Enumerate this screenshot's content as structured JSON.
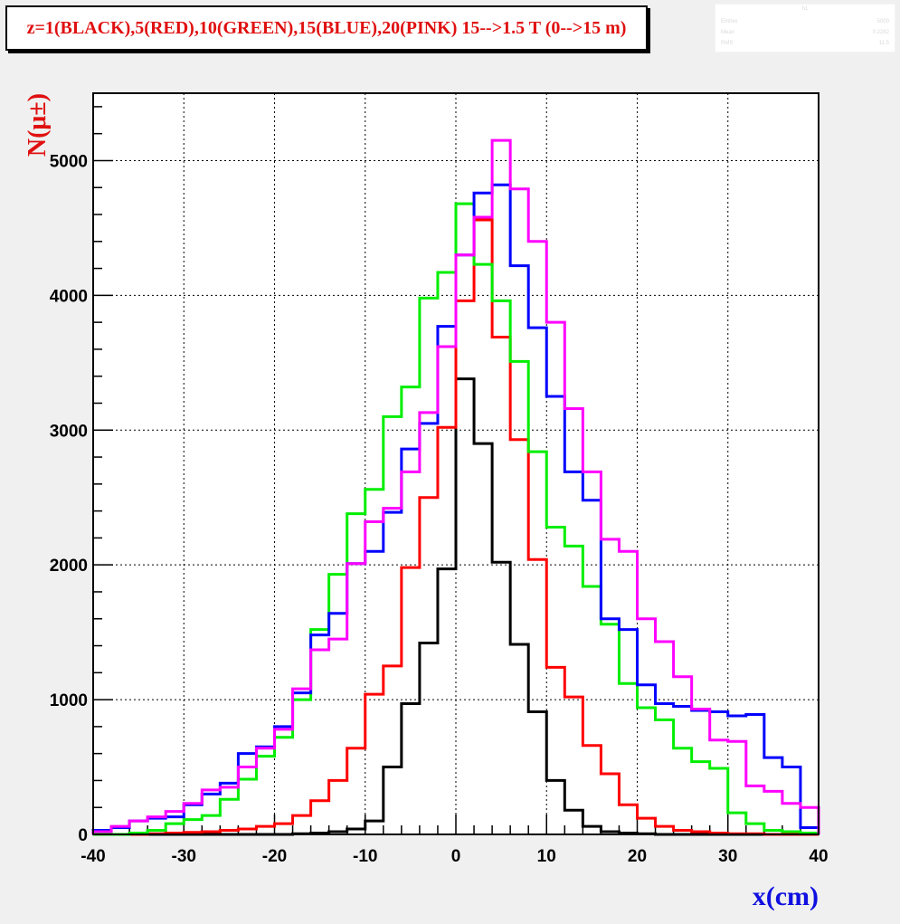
{
  "title": "z=1(BLACK),5(RED),10(GREEN),15(BLUE),20(PINK) 15-->1.5 T (0-->15 m)",
  "stats_box": {
    "title": "h1",
    "rows": [
      {
        "label": "Entries",
        "value": "5000"
      },
      {
        "label": "Mean",
        "value": "0.2282"
      },
      {
        "label": "RMS",
        "value": "11.5"
      }
    ]
  },
  "chart_data": {
    "type": "histogram",
    "xlabel": "x(cm)",
    "ylabel": "N(μ±)",
    "xlim": [
      -40,
      40
    ],
    "ylim": [
      0,
      5500
    ],
    "x_ticks": [
      -40,
      -30,
      -20,
      -10,
      0,
      10,
      20,
      30,
      40
    ],
    "y_ticks": [
      0,
      1000,
      2000,
      3000,
      4000,
      5000
    ],
    "grid": true,
    "bin_edges": [
      -40,
      -38,
      -36,
      -34,
      -32,
      -30,
      -28,
      -26,
      -24,
      -22,
      -20,
      -18,
      -16,
      -14,
      -12,
      -10,
      -8,
      -6,
      -4,
      -2,
      0,
      2,
      4,
      6,
      8,
      10,
      12,
      14,
      16,
      18,
      20,
      22,
      24,
      26,
      28,
      30,
      32,
      34,
      36,
      38,
      40
    ],
    "series": [
      {
        "name": "z=1",
        "color": "#000000",
        "values": [
          0,
          0,
          0,
          0,
          0,
          0,
          0,
          0,
          0,
          0,
          0,
          5,
          10,
          20,
          40,
          100,
          500,
          970,
          1420,
          1970,
          3380,
          2900,
          2020,
          1410,
          910,
          400,
          180,
          60,
          20,
          10,
          5,
          0,
          0,
          0,
          0,
          0,
          0,
          0,
          0,
          0
        ]
      },
      {
        "name": "z=5",
        "color": "#ff0000",
        "values": [
          0,
          0,
          0,
          5,
          10,
          15,
          20,
          30,
          40,
          60,
          80,
          140,
          250,
          400,
          640,
          1040,
          1250,
          1980,
          2500,
          3020,
          3960,
          4560,
          3690,
          2930,
          2040,
          1240,
          1020,
          660,
          450,
          220,
          120,
          60,
          30,
          20,
          10,
          5,
          5,
          0,
          0,
          0
        ]
      },
      {
        "name": "z=10",
        "color": "#00ee00",
        "values": [
          0,
          0,
          10,
          30,
          80,
          110,
          140,
          260,
          410,
          580,
          720,
          1000,
          1520,
          1930,
          2380,
          2560,
          3100,
          3320,
          3980,
          4170,
          4680,
          4230,
          3960,
          3510,
          2840,
          2280,
          2140,
          1840,
          1560,
          1120,
          940,
          850,
          640,
          540,
          490,
          160,
          80,
          30,
          20,
          10
        ]
      },
      {
        "name": "z=15",
        "color": "#0000ff",
        "values": [
          30,
          50,
          100,
          120,
          130,
          220,
          300,
          380,
          600,
          650,
          800,
          1050,
          1480,
          1640,
          2010,
          2100,
          2390,
          2860,
          3050,
          3770,
          4300,
          4760,
          4820,
          4220,
          3760,
          3250,
          2690,
          2480,
          1600,
          1520,
          1110,
          970,
          950,
          920,
          910,
          880,
          890,
          570,
          500,
          50
        ]
      },
      {
        "name": "z=20",
        "color": "#ff00ff",
        "values": [
          20,
          60,
          100,
          130,
          170,
          230,
          330,
          350,
          500,
          640,
          780,
          1080,
          1370,
          1450,
          2010,
          2320,
          2420,
          2690,
          3130,
          3620,
          4300,
          4580,
          5150,
          4790,
          4400,
          3800,
          3160,
          2690,
          2190,
          2100,
          1600,
          1430,
          1170,
          930,
          700,
          690,
          360,
          320,
          230,
          200
        ]
      }
    ]
  }
}
